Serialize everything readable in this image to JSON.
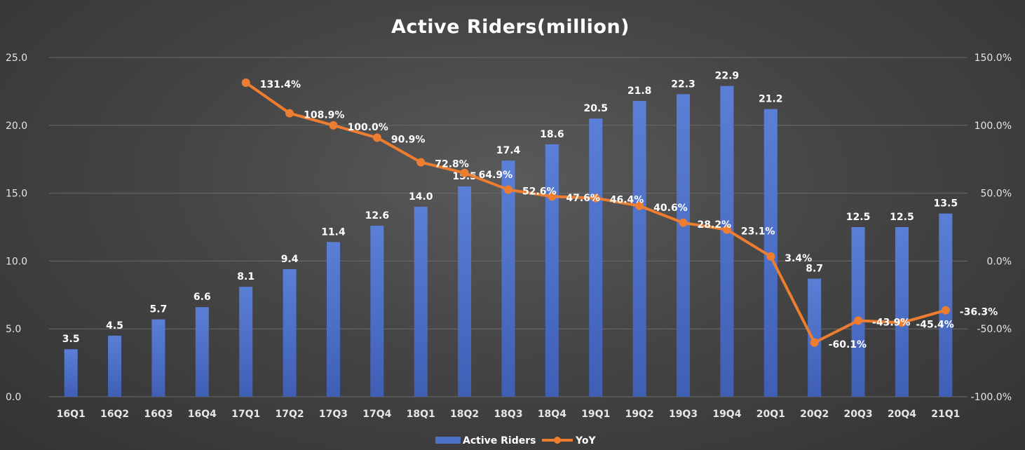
{
  "chart_data": {
    "type": "bar+line",
    "title": "Active Riders(million)",
    "categories": [
      "16Q1",
      "16Q2",
      "16Q3",
      "16Q4",
      "17Q1",
      "17Q2",
      "17Q3",
      "17Q4",
      "18Q1",
      "18Q2",
      "18Q3",
      "18Q4",
      "19Q1",
      "19Q2",
      "19Q3",
      "19Q4",
      "20Q1",
      "20Q2",
      "20Q3",
      "20Q4",
      "21Q1"
    ],
    "series": [
      {
        "name": "Active Riders",
        "type": "bar",
        "axis": "left",
        "color": "#4f72c9",
        "values": [
          3.5,
          4.5,
          5.7,
          6.6,
          8.1,
          9.4,
          11.4,
          12.6,
          14.0,
          15.5,
          17.4,
          18.6,
          20.5,
          21.8,
          22.3,
          22.9,
          21.2,
          8.7,
          12.5,
          12.5,
          13.5
        ],
        "labels": [
          "3.5",
          "4.5",
          "5.7",
          "6.6",
          "8.1",
          "9.4",
          "11.4",
          "12.6",
          "14.0",
          "15.5",
          "17.4",
          "18.6",
          "20.5",
          "21.8",
          "22.3",
          "22.9",
          "21.2",
          "8.7",
          "12.5",
          "12.5",
          "13.5"
        ]
      },
      {
        "name": "YoY",
        "type": "line",
        "axis": "right",
        "color": "#ed7d31",
        "values": [
          null,
          null,
          null,
          null,
          131.4,
          108.9,
          100.0,
          90.9,
          72.8,
          64.9,
          52.6,
          47.6,
          46.4,
          40.6,
          28.2,
          23.1,
          3.4,
          -60.1,
          -43.9,
          -45.4,
          -36.3
        ],
        "labels": [
          "",
          "",
          "",
          "",
          "131.4%",
          "108.9%",
          "100.0%",
          "90.9%",
          "72.8%",
          "64.9%",
          "52.6%",
          "47.6%",
          "46.4%",
          "40.6%",
          "28.2%",
          "23.1%",
          "3.4%",
          "-60.1%",
          "-43.9%",
          "-45.4%",
          "-36.3%"
        ]
      }
    ],
    "y_left": {
      "min": 0,
      "max": 25,
      "ticks": [
        "0.0",
        "5.0",
        "10.0",
        "15.0",
        "20.0",
        "25.0"
      ]
    },
    "y_right": {
      "min": -100,
      "max": 150,
      "ticks": [
        "-100.0%",
        "-50.0%",
        "0.0%",
        "50.0%",
        "100.0%",
        "150.0%"
      ]
    },
    "legend": {
      "position": "bottom",
      "items": [
        "Active Riders",
        "YoY"
      ]
    },
    "grid": true
  }
}
